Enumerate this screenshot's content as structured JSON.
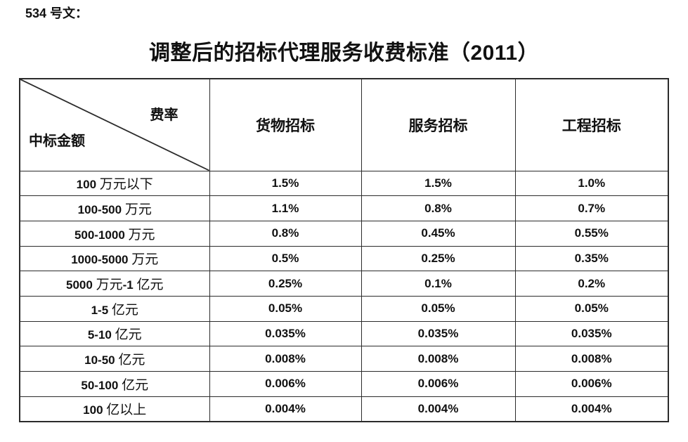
{
  "doc": {
    "number": "534 号文：",
    "title": "调整后的招标代理服务收费标准（2011）"
  },
  "table": {
    "corner_top_right": "费率",
    "corner_bottom_left": "中标金额",
    "columns": [
      "货物招标",
      "服务招标",
      "工程招标"
    ],
    "rows": [
      {
        "label": "100 万元以下",
        "values": [
          "1.5%",
          "1.5%",
          "1.0%"
        ]
      },
      {
        "label": "100-500 万元",
        "values": [
          "1.1%",
          "0.8%",
          "0.7%"
        ]
      },
      {
        "label": "500-1000 万元",
        "values": [
          "0.8%",
          "0.45%",
          "0.55%"
        ]
      },
      {
        "label": "1000-5000 万元",
        "values": [
          "0.5%",
          "0.25%",
          "0.35%"
        ]
      },
      {
        "label": "5000 万元-1 亿元",
        "values": [
          "0.25%",
          "0.1%",
          "0.2%"
        ]
      },
      {
        "label": "1-5 亿元",
        "values": [
          "0.05%",
          "0.05%",
          "0.05%"
        ]
      },
      {
        "label": "5-10 亿元",
        "values": [
          "0.035%",
          "0.035%",
          "0.035%"
        ]
      },
      {
        "label": "10-50 亿元",
        "values": [
          "0.008%",
          "0.008%",
          "0.008%"
        ]
      },
      {
        "label": "50-100 亿元",
        "values": [
          "0.006%",
          "0.006%",
          "0.006%"
        ]
      },
      {
        "label": "100 亿以上",
        "values": [
          "0.004%",
          "0.004%",
          "0.004%"
        ]
      }
    ]
  },
  "colors": {
    "text": "#111111",
    "border": "#2b2b2b",
    "background": "#ffffff"
  }
}
